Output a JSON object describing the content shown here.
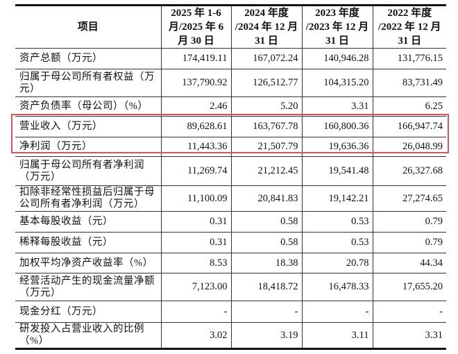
{
  "table": {
    "headers": [
      "项目",
      "2025 年 1-6 月/2025 年 6 月 30 日",
      "2024 年度 /2024 年 12 月 31 日",
      "2023 年度 /2023 年 12 月 31 日",
      "2022 年度 /2022 年 12 月 31 日"
    ],
    "rows": [
      {
        "label": "资产总额（万元）",
        "values": [
          "174,419.11",
          "167,072.24",
          "140,946.28",
          "131,776.15"
        ]
      },
      {
        "label": "归属于母公司所有者权益（万元）",
        "values": [
          "137,790.92",
          "126,512.77",
          "104,315.20",
          "83,731.49"
        ]
      },
      {
        "label": "资产负债率（母公司）（%）",
        "values": [
          "2.46",
          "5.20",
          "3.31",
          "6.25"
        ]
      },
      {
        "label": "营业收入（万元）",
        "values": [
          "89,628.61",
          "163,767.78",
          "160,800.36",
          "166,947.74"
        ]
      },
      {
        "label": "净利润（万元）",
        "values": [
          "11,443.36",
          "21,507.79",
          "19,636.36",
          "26,048.99"
        ]
      },
      {
        "label": "归属于母公司所有者净利润（万元）",
        "values": [
          "11,269.74",
          "21,212.45",
          "19,541.48",
          "26,327.68"
        ]
      },
      {
        "label": "扣除非经常性损益后归属于母公司所有者净利润（万元）",
        "values": [
          "11,100.09",
          "20,841.83",
          "19,142.21",
          "27,274.65"
        ]
      },
      {
        "label": "基本每股收益（元）",
        "values": [
          "0.31",
          "0.58",
          "0.53",
          "0.79"
        ]
      },
      {
        "label": "稀释每股收益（元）",
        "values": [
          "0.31",
          "0.58",
          "0.53",
          "0.79"
        ]
      },
      {
        "label": "加权平均净资产收益率（%）",
        "values": [
          "8.53",
          "18.38",
          "20.78",
          "44.34"
        ]
      },
      {
        "label": "经营活动产生的现金流量净额（万元）",
        "values": [
          "7,123.00",
          "18,418.72",
          "16,478.33",
          "17,655.20"
        ]
      },
      {
        "label": "现金分红（万元）",
        "values": [
          "-",
          "-",
          "-",
          "-"
        ]
      },
      {
        "label": "研发投入占营业收入的比例（%）",
        "values": [
          "3.02",
          "3.19",
          "3.11",
          "3.31"
        ]
      }
    ]
  },
  "highlight": {
    "color": "#e0525a"
  }
}
